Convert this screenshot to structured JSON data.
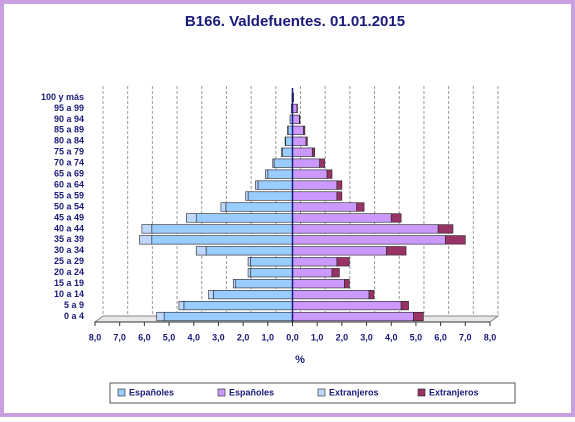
{
  "chart_data": {
    "type": "pyramid",
    "title": "B166. Valdefuentes. 01.01.2015",
    "xlabel": "%",
    "categories": [
      "0 a 4",
      "5 a 9",
      "10 a 14",
      "15 a 19",
      "20 a 24",
      "25 a 29",
      "30 a 34",
      "35 a 39",
      "40 a 44",
      "45 a 49",
      "50 a 54",
      "55 a 59",
      "60 a 64",
      "65 a 69",
      "70 a 74",
      "75 a 79",
      "80 a 84",
      "85 a 89",
      "90 a 94",
      "95 a 99",
      "100 y más"
    ],
    "series": [
      {
        "name": "Españoles",
        "color": "#99ccff",
        "side": "left",
        "values": [
          -5.2,
          -4.4,
          -3.2,
          -2.3,
          -1.7,
          -1.7,
          -3.5,
          -5.7,
          -5.7,
          -3.9,
          -2.7,
          -1.8,
          -1.4,
          -1.0,
          -0.75,
          -0.4,
          -0.28,
          -0.18,
          -0.1,
          -0.05,
          -0.02
        ]
      },
      {
        "name": "Españoles",
        "color": "#cc99ff",
        "side": "right",
        "values": [
          4.9,
          4.4,
          3.1,
          2.1,
          1.6,
          1.8,
          3.8,
          6.2,
          5.9,
          4.0,
          2.6,
          1.8,
          1.8,
          1.4,
          1.1,
          0.8,
          0.55,
          0.45,
          0.28,
          0.18,
          0.05
        ]
      },
      {
        "name": "Extranjeros",
        "color": "#c0d8ff",
        "side": "left",
        "values": [
          -0.3,
          -0.2,
          -0.2,
          -0.1,
          -0.1,
          -0.1,
          -0.4,
          -0.5,
          -0.4,
          -0.4,
          -0.2,
          -0.1,
          -0.1,
          -0.1,
          -0.05,
          -0.05,
          -0.02,
          -0.02,
          0,
          0,
          0
        ]
      },
      {
        "name": "Extranjeros",
        "color": "#993366",
        "side": "right",
        "values": [
          0.4,
          0.3,
          0.2,
          0.2,
          0.3,
          0.5,
          0.8,
          0.8,
          0.6,
          0.4,
          0.3,
          0.2,
          0.2,
          0.2,
          0.2,
          0.1,
          0.05,
          0.05,
          0.02,
          0.02,
          0
        ]
      }
    ],
    "xlim": [
      -8,
      8
    ],
    "xticks": [
      {
        "value": -8,
        "label": "8,0"
      },
      {
        "value": -7,
        "label": "7,0"
      },
      {
        "value": -6,
        "label": "6,0"
      },
      {
        "value": -5,
        "label": "5,0"
      },
      {
        "value": -4,
        "label": "4,0"
      },
      {
        "value": -3,
        "label": "3,0"
      },
      {
        "value": -2,
        "label": "2,0"
      },
      {
        "value": -1,
        "label": "1,0"
      },
      {
        "value": 0,
        "label": "0,0"
      },
      {
        "value": 1,
        "label": "1,0"
      },
      {
        "value": 2,
        "label": "2,0"
      },
      {
        "value": 3,
        "label": "3,0"
      },
      {
        "value": 4,
        "label": "4,0"
      },
      {
        "value": 5,
        "label": "5,0"
      },
      {
        "value": 6,
        "label": "6,0"
      },
      {
        "value": 7,
        "label": "7,0"
      },
      {
        "value": 8,
        "label": "8,0"
      }
    ],
    "grid": true
  }
}
